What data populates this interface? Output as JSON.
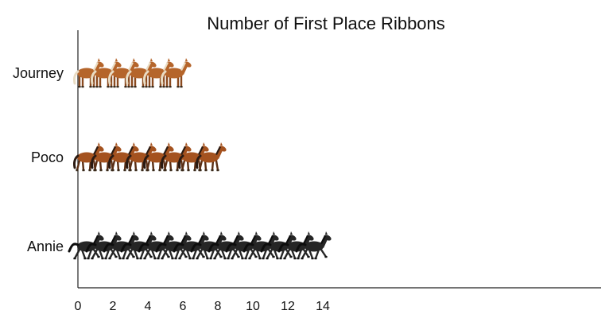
{
  "chart_data": {
    "type": "bar",
    "title": "Number of First Place Ribbons",
    "xlabel": "",
    "ylabel": "",
    "categories": [
      "Journey",
      "Poco",
      "Annie"
    ],
    "values": [
      6,
      8,
      14
    ],
    "xlim": [
      0,
      15
    ],
    "xticks": [
      "0",
      "2",
      "4",
      "6",
      "8",
      "10",
      "12",
      "14"
    ],
    "grid": false,
    "legend": "none",
    "icon_style": [
      {
        "category": "Journey",
        "icon": "chestnut-horse-standing-icon",
        "body_color": "#b5652b",
        "mane_color": "#e9dcc4"
      },
      {
        "category": "Poco",
        "icon": "bay-horse-walking-icon",
        "body_color": "#a4521f",
        "mane_color": "#2a1a12"
      },
      {
        "category": "Annie",
        "icon": "black-horse-galloping-icon",
        "body_color": "#262626",
        "mane_color": "#0d0d0d"
      }
    ]
  }
}
